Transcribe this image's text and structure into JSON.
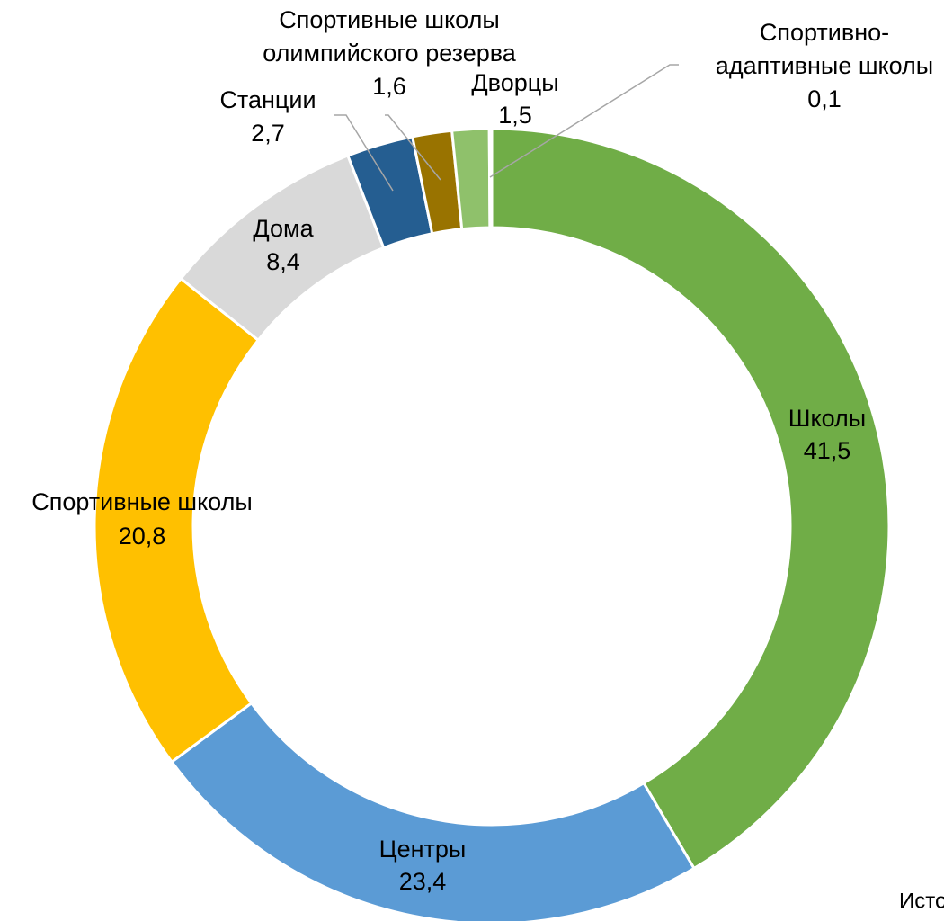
{
  "chart_data": {
    "type": "donut",
    "categories": [
      "Школы",
      "Центры",
      "Спортивные школы",
      "Дома",
      "Станции",
      "Спортивные школы\nолимпийского резерва",
      "Дворцы",
      "Спортивно-\nадаптивные школы"
    ],
    "values": [
      41.5,
      23.4,
      20.8,
      8.4,
      2.7,
      1.6,
      1.5,
      0.1
    ],
    "value_labels": [
      "41,5",
      "23,4",
      "20,8",
      "8,4",
      "2,7",
      "1,6",
      "1,5",
      "0,1"
    ],
    "colors": [
      "#70ad47",
      "#5b9bd5",
      "#ffc000",
      "#d9d9d9",
      "#255e91",
      "#997300",
      "#8fc16b",
      "#a9d18e"
    ],
    "source": "Источни"
  }
}
